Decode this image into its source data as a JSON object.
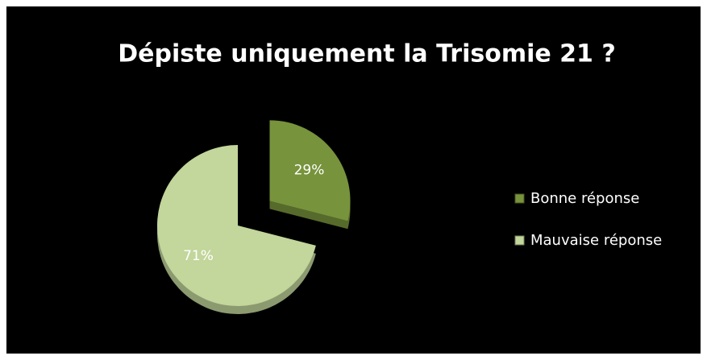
{
  "chart_data": {
    "type": "pie",
    "title": "Dépiste uniquement la Trisomie 21 ?",
    "categories": [
      "Bonne réponse",
      "Mauvaise réponse"
    ],
    "values": [
      29,
      71
    ],
    "value_labels": [
      "29%",
      "71%"
    ],
    "colors": [
      "#77933c",
      "#c3d69b"
    ],
    "legend": "right"
  }
}
